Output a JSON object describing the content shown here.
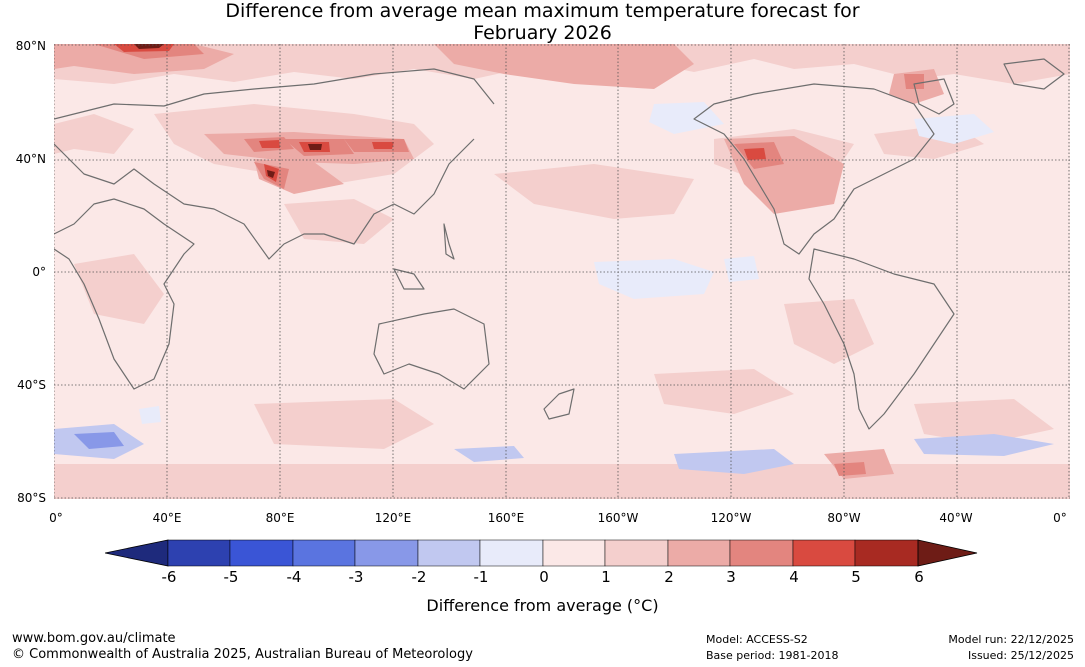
{
  "title_line1": "Difference from average mean maximum temperature forecast for",
  "title_line2": "February 2026",
  "map": {
    "lat_labels": [
      "80°N",
      "40°N",
      "0°",
      "40°S",
      "80°S"
    ],
    "lon_labels": [
      "0°",
      "40°E",
      "80°E",
      "120°E",
      "160°E",
      "160°W",
      "120°W",
      "80°W",
      "40°W",
      "0°"
    ],
    "palette": {
      "neg6": "#1e2a7c",
      "neg5": "#2d41b0",
      "neg4": "#3a55d6",
      "neg3": "#5a74e0",
      "neg2": "#8898e8",
      "neg1": "#c1c8f0",
      "zero": "#e8ebfa",
      "pos1": "#fbe8e7",
      "pos2": "#f4cfcd",
      "pos3": "#ecaba7",
      "pos4": "#e3857f",
      "pos5": "#d94a40",
      "pos6": "#a82a22",
      "over": "#6e1c16",
      "coast": "#6e6e6e",
      "grid": "#555555"
    }
  },
  "colorbar": {
    "ticks": [
      "-6",
      "-5",
      "-4",
      "-3",
      "-2",
      "-1",
      "0",
      "1",
      "2",
      "3",
      "4",
      "5",
      "6"
    ],
    "title": "Difference from average (°C)"
  },
  "footer": {
    "site": "www.bom.gov.au/climate",
    "copyright": "© Commonwealth of Australia 2025, Australian Bureau of Meteorology",
    "model": "Model: ACCESS-S2",
    "base_period": "Base period: 1981-2018",
    "model_run": "Model run: 22/12/2025",
    "issued": "Issued: 25/12/2025"
  }
}
